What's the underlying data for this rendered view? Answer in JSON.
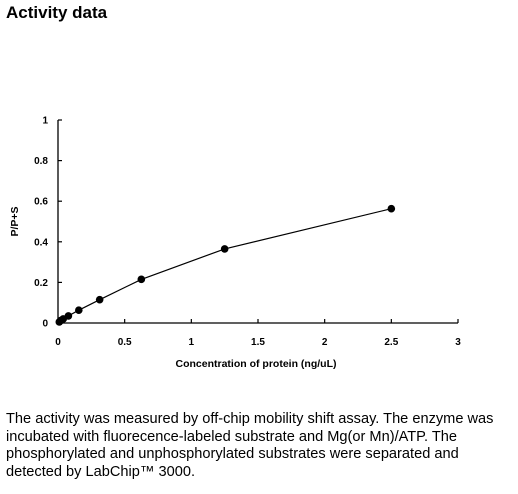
{
  "page": {
    "title": "Activity data",
    "description": "The activity was measured by off-chip mobility shift assay. The enzyme was incubated with fluorecence-labeled  substrate and Mg(or Mn)/ATP. The phosphorylated and unphosphorylated substrates were separated and detected by LabChip™ 3000."
  },
  "chart_data": {
    "type": "line",
    "title": "",
    "xlabel": "Concentration of protein (ng/uL)",
    "ylabel": "P/P+S",
    "xlim": [
      0,
      3
    ],
    "ylim": [
      0,
      1
    ],
    "xticks": [
      0,
      0.5,
      1,
      1.5,
      2,
      2.5,
      3
    ],
    "xtick_labels": [
      "0",
      "0.5",
      "1",
      "1.5",
      "2",
      "2.5",
      "3"
    ],
    "yticks": [
      0,
      0.2,
      0.4,
      0.6,
      0.8,
      1
    ],
    "ytick_labels": [
      "0",
      "0.2",
      "0.4",
      "0.6",
      "0.8",
      "1"
    ],
    "grid": false,
    "legend": "none",
    "series": [
      {
        "x": [
          0.0098,
          0.0195,
          0.039,
          0.078,
          0.156,
          0.3125,
          0.625,
          1.25,
          2.5
        ],
        "y": [
          0.005,
          0.012,
          0.02,
          0.035,
          0.063,
          0.115,
          0.215,
          0.365,
          0.563
        ],
        "color": "#000000",
        "marker": "circle"
      }
    ]
  }
}
